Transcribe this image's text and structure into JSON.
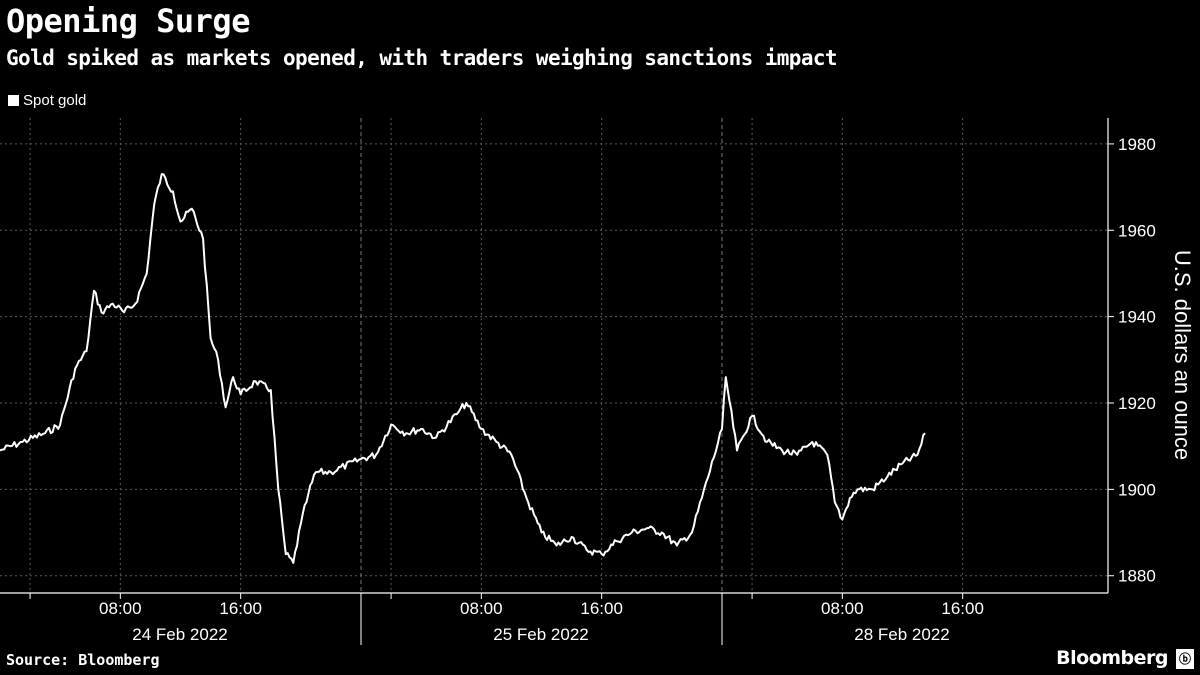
{
  "title": "Opening Surge",
  "subtitle": "Gold spiked as markets opened, with traders weighing sanctions impact",
  "source": "Source: Bloomberg",
  "brand": "Bloomberg",
  "colors": {
    "background": "#000000",
    "line": "#ffffff",
    "grid": "#555555"
  },
  "chart_data": {
    "type": "line",
    "title": "Opening Surge",
    "subtitle": "Gold spiked as markets opened, with traders weighing sanctions impact",
    "ylabel": "U.S. dollars an ounce",
    "xlabel": "",
    "ylim": [
      1876,
      1986
    ],
    "y_ticks": [
      1880,
      1900,
      1920,
      1940,
      1960,
      1980
    ],
    "grid": true,
    "legend_position": "top-left",
    "sessions": [
      "24 Feb 2022",
      "25 Feb 2022",
      "28 Feb 2022"
    ],
    "x_tick_labels": [
      "08:00",
      "16:00",
      "08:00",
      "16:00",
      "08:00",
      "16:00"
    ],
    "series": [
      {
        "name": "Spot gold",
        "color": "#ffffff",
        "points": [
          [
            "24 Feb 00:00",
            1909
          ],
          [
            "24 Feb 01:30",
            1911
          ],
          [
            "24 Feb 03:00",
            1913
          ],
          [
            "24 Feb 04:00",
            1915
          ],
          [
            "24 Feb 05:00",
            1928
          ],
          [
            "24 Feb 05:45",
            1932
          ],
          [
            "24 Feb 06:15",
            1946
          ],
          [
            "24 Feb 06:45",
            1941
          ],
          [
            "24 Feb 07:30",
            1943
          ],
          [
            "24 Feb 08:15",
            1941
          ],
          [
            "24 Feb 09:00",
            1943
          ],
          [
            "24 Feb 09:45",
            1950
          ],
          [
            "24 Feb 10:15",
            1966
          ],
          [
            "24 Feb 10:45",
            1973
          ],
          [
            "24 Feb 11:30",
            1969
          ],
          [
            "24 Feb 12:00",
            1962
          ],
          [
            "24 Feb 12:45",
            1965
          ],
          [
            "24 Feb 13:30",
            1958
          ],
          [
            "24 Feb 14:00",
            1935
          ],
          [
            "24 Feb 14:30",
            1930
          ],
          [
            "24 Feb 15:00",
            1919
          ],
          [
            "24 Feb 15:30",
            1926
          ],
          [
            "24 Feb 16:00",
            1922
          ],
          [
            "24 Feb 17:00",
            1925
          ],
          [
            "24 Feb 18:00",
            1923
          ],
          [
            "24 Feb 18:30",
            1900
          ],
          [
            "24 Feb 19:00",
            1885
          ],
          [
            "24 Feb 19:30",
            1883
          ],
          [
            "24 Feb 20:00",
            1892
          ],
          [
            "24 Feb 20:30",
            1899
          ],
          [
            "24 Feb 21:00",
            1904
          ],
          [
            "24 Feb 22:00",
            1904
          ],
          [
            "25 Feb 00:00",
            1907
          ],
          [
            "25 Feb 01:00",
            1908
          ],
          [
            "25 Feb 02:00",
            1915
          ],
          [
            "25 Feb 03:00",
            1913
          ],
          [
            "25 Feb 04:00",
            1914
          ],
          [
            "25 Feb 05:00",
            1912
          ],
          [
            "25 Feb 06:30",
            1918
          ],
          [
            "25 Feb 07:00",
            1920
          ],
          [
            "25 Feb 08:00",
            1914
          ],
          [
            "25 Feb 09:00",
            1911
          ],
          [
            "25 Feb 10:00",
            1908
          ],
          [
            "25 Feb 11:00",
            1898
          ],
          [
            "25 Feb 12:00",
            1890
          ],
          [
            "25 Feb 13:00",
            1887
          ],
          [
            "25 Feb 14:00",
            1889
          ],
          [
            "25 Feb 15:00",
            1886
          ],
          [
            "25 Feb 16:00",
            1885
          ],
          [
            "25 Feb 17:00",
            1888
          ],
          [
            "25 Feb 18:00",
            1890
          ],
          [
            "25 Feb 19:00",
            1891
          ],
          [
            "25 Feb 20:00",
            1890
          ],
          [
            "25 Feb 21:00",
            1887
          ],
          [
            "25 Feb 22:00",
            1890
          ],
          [
            "28 Feb 00:00",
            1914
          ],
          [
            "28 Feb 00:15",
            1926
          ],
          [
            "28 Feb 01:00",
            1909
          ],
          [
            "28 Feb 02:00",
            1917
          ],
          [
            "28 Feb 03:00",
            1911
          ],
          [
            "28 Feb 04:00",
            1909
          ],
          [
            "28 Feb 05:00",
            1908
          ],
          [
            "28 Feb 06:00",
            1911
          ],
          [
            "28 Feb 07:00",
            1908
          ],
          [
            "28 Feb 07:30",
            1897
          ],
          [
            "28 Feb 08:00",
            1893
          ],
          [
            "28 Feb 08:30",
            1898
          ],
          [
            "28 Feb 09:00",
            1900
          ],
          [
            "28 Feb 10:00",
            1900
          ],
          [
            "28 Feb 11:00",
            1903
          ],
          [
            "28 Feb 12:00",
            1906
          ],
          [
            "28 Feb 13:00",
            1908
          ],
          [
            "28 Feb 13:30",
            1913
          ]
        ]
      }
    ]
  }
}
